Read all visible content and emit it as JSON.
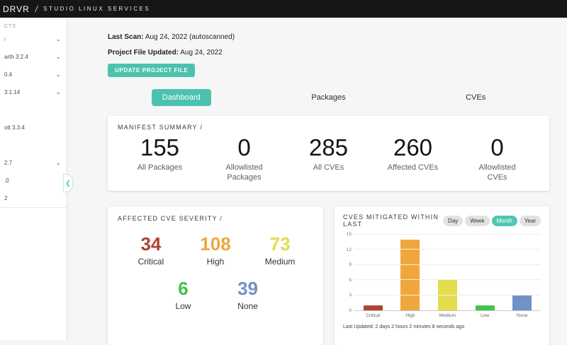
{
  "topbar": {
    "brand": "DRVR",
    "separator": "/",
    "title": "STUDIO LINUX SERVICES"
  },
  "sidebar": {
    "header": "CTS",
    "items": [
      {
        "label": "r",
        "active": true,
        "chevron": true
      },
      {
        "label": "arth 3.2.4",
        "chevron": true
      },
      {
        "label": "0.4",
        "chevron": true
      },
      {
        "label": "3.1.14",
        "chevron": true
      },
      {
        "label": "",
        "chevron": false
      },
      {
        "label": "ott 3.3.4",
        "chevron": false
      },
      {
        "label": "",
        "chevron": false
      },
      {
        "label": "2.7",
        "chevron": true
      },
      {
        "label": ".0",
        "chevron": false
      },
      {
        "label": "2",
        "chevron": false
      }
    ]
  },
  "header": {
    "last_scan_label": "Last Scan:",
    "last_scan_value": "Aug 24, 2022 (autoscanned)",
    "project_file_label": "Project File Updated:",
    "project_file_value": "Aug 24, 2022",
    "update_button": "UPDATE PROJECT FILE"
  },
  "tabs": [
    {
      "label": "Dashboard",
      "active": true
    },
    {
      "label": "Packages",
      "active": false
    },
    {
      "label": "CVEs",
      "active": false
    }
  ],
  "manifest": {
    "title": "MANIFEST SUMMARY /",
    "stats": [
      {
        "value": "155",
        "label": "All Packages"
      },
      {
        "value": "0",
        "label": "Allowlisted Packages"
      },
      {
        "value": "285",
        "label": "All CVEs"
      },
      {
        "value": "260",
        "label": "Affected CVEs"
      },
      {
        "value": "0",
        "label": "Allowlisted CVEs"
      }
    ]
  },
  "severity": {
    "title": "AFFECTED CVE SEVERITY /",
    "items": [
      {
        "value": "34",
        "label": "Critical",
        "color": "#ae4431"
      },
      {
        "value": "108",
        "label": "High",
        "color": "#efa73c"
      },
      {
        "value": "73",
        "label": "Medium",
        "color": "#e3dd4e"
      },
      {
        "value": "6",
        "label": "Low",
        "color": "#44c24d"
      },
      {
        "value": "39",
        "label": "None",
        "color": "#7092c7"
      }
    ]
  },
  "mitigated": {
    "title": "CVES MITIGATED WITHIN LAST",
    "ranges": [
      {
        "label": "Day",
        "active": false
      },
      {
        "label": "Week",
        "active": false
      },
      {
        "label": "Month",
        "active": true
      },
      {
        "label": "Year",
        "active": false
      }
    ],
    "last_updated": "Last Updated: 2 days 2 hours 2 minutes 8 seconds ago"
  },
  "chart_data": {
    "type": "bar",
    "title": "CVES MITIGATED WITHIN LAST",
    "categories": [
      "Critical",
      "High",
      "Medium",
      "Low",
      "None"
    ],
    "values": [
      1,
      14,
      6,
      1,
      3
    ],
    "colors": [
      "#ae4431",
      "#efa73c",
      "#e3dd4e",
      "#44c24d",
      "#7092c7"
    ],
    "xlabel": "",
    "ylabel": "",
    "ylim": [
      0,
      15
    ],
    "yticks": [
      0,
      3,
      6,
      9,
      12,
      15
    ],
    "grid": true,
    "legend": false
  }
}
